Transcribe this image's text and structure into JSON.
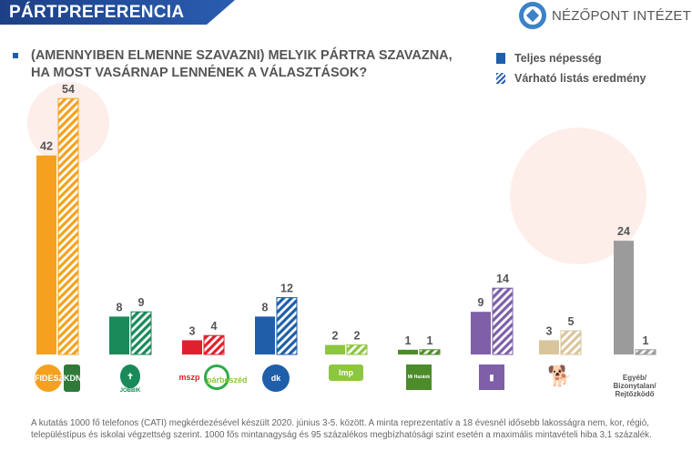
{
  "header": {
    "title": "PÁRTPREFERENCIA",
    "logo_text": "NÉZŐPONT INTÉZET"
  },
  "question": {
    "line1": "(AMENNYIBEN ELMENNE SZAVAZNI) MELYIK PÁRTRA SZAVAZNA,",
    "line2": "HA MOST VASÁRNAP LENNÉNEK A VÁLASZTÁSOK?"
  },
  "chart_data": {
    "type": "bar",
    "title": "(AMENNYIBEN ELMENNE SZAVAZNI) MELYIK PÁRTRA SZAVAZNA, HA MOST VASÁRNAP LENNÉNEK A VÁLASZTÁSOK?",
    "categories": [
      "Fidesz-KDNP",
      "Jobbik",
      "MSZP-Párbeszéd",
      "DK",
      "LMP",
      "Mi Hazánk",
      "Momentum",
      "Kétfarkú Kutya Párt",
      "Egyéb/ Bizonytalan/ Rejtőzködő"
    ],
    "series": [
      {
        "name": "Teljes népesség",
        "values": [
          42,
          8,
          3,
          8,
          2,
          1,
          9,
          3,
          24
        ],
        "pattern": "solid"
      },
      {
        "name": "Várható listás eredmény",
        "values": [
          54,
          9,
          4,
          12,
          2,
          1,
          14,
          5,
          1
        ],
        "pattern": "hatched"
      }
    ],
    "colors": [
      "#f5a11f",
      "#1a8a5a",
      "#e0202e",
      "#1f5ea8",
      "#8dc63f",
      "#4c8c2b",
      "#7e5fa8",
      "#d9c59c",
      "#9b9b9b"
    ],
    "ylim": [
      0,
      60
    ],
    "legend": "top-right",
    "grid": false
  },
  "party_labels": {
    "other": "Egyéb/ Bizonytalan/ Rejtőzködő",
    "fidesz": "FIDESZ",
    "kdnp": "KDNP",
    "jobbik": "JOBBIK",
    "mszp": "mszp",
    "parbeszed": "párbeszéd",
    "dk": "dk",
    "lmp": "lmp",
    "mihazank": "Mi Hazánk"
  },
  "note": "A kutatás 1000 fő telefonos (CATI) megkérdezésével készült 2020. június 3-5. között.  A minta reprezentatív a 18 évesnél idősebb lakosságra nem, kor, régió, településtípus és iskolai végzettség szerint.  1000 fős mintanagyság és 95 százalékos megbízhatósági szint esetén a maximális mintavételi hiba 3,1 százalék."
}
